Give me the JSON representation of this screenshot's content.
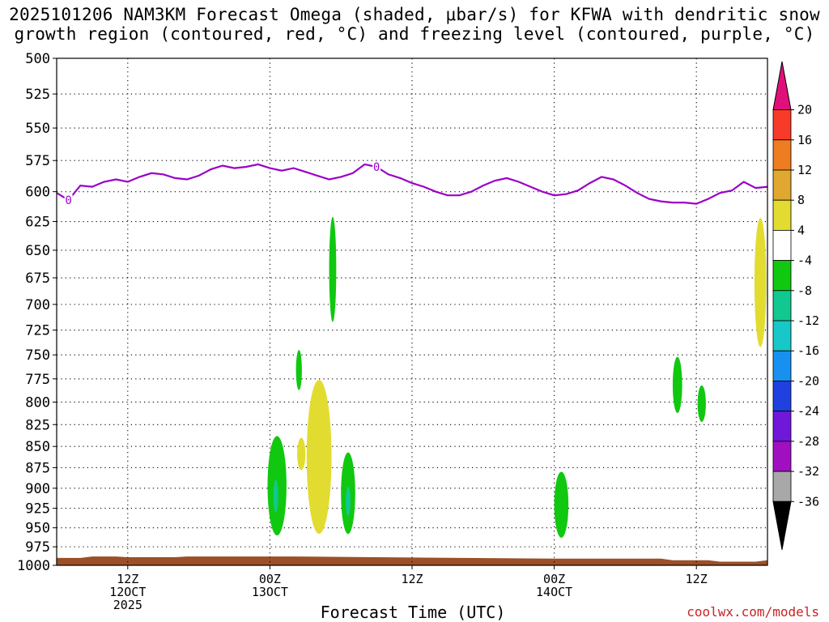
{
  "title": {
    "line1": "2025101206 NAM3KM Forecast Omega (shaded, μbar/s) for KFWA with dendritic snow",
    "line2": "growth region (contoured, red, °C) and freezing level (contoured, purple, °C)"
  },
  "credit": "coolwx.com/models",
  "chart_data": {
    "type": "time-height",
    "title": "2025101206 NAM3KM Forecast Omega (shaded, μbar/s) for KFWA with dendritic snow growth region (contoured, red, °C) and freezing level (contoured, purple, °C)",
    "xlabel": "Forecast Time (UTC)",
    "ylabel": "",
    "x_unit": "hours from 2025-10-12 06Z",
    "xlim": [
      0,
      60
    ],
    "y_unit": "hPa",
    "ylim": [
      1000,
      500
    ],
    "y_scale": "log-pressure, inverted",
    "y_ticks": [
      500,
      525,
      550,
      575,
      600,
      625,
      650,
      675,
      700,
      725,
      750,
      775,
      800,
      825,
      850,
      875,
      900,
      925,
      950,
      975,
      1000
    ],
    "x_ticks": [
      {
        "x": 6,
        "lines": [
          "12Z",
          "12OCT",
          "2025"
        ]
      },
      {
        "x": 18,
        "lines": [
          "00Z",
          "13OCT"
        ]
      },
      {
        "x": 30,
        "lines": [
          "12Z"
        ]
      },
      {
        "x": 42,
        "lines": [
          "00Z",
          "14OCT"
        ]
      },
      {
        "x": 54,
        "lines": [
          "12Z"
        ]
      }
    ],
    "grid": true,
    "colorbar": {
      "unit": "μbar/s",
      "tick_labels": [
        "20",
        "16",
        "12",
        "8",
        "4",
        "-4",
        "-8",
        "-12",
        "-16",
        "-20",
        "-24",
        "-28",
        "-32",
        "-36"
      ],
      "bins": [
        {
          "range": [
            20,
            null
          ],
          "color": "#e0107a"
        },
        {
          "range": [
            16,
            20
          ],
          "color": "#f83a28"
        },
        {
          "range": [
            12,
            16
          ],
          "color": "#ee7c20"
        },
        {
          "range": [
            8,
            12
          ],
          "color": "#e0a830"
        },
        {
          "range": [
            4,
            8
          ],
          "color": "#e2dc30"
        },
        {
          "range": [
            -4,
            4
          ],
          "color": "#ffffff"
        },
        {
          "range": [
            -8,
            -4
          ],
          "color": "#10c810"
        },
        {
          "range": [
            -12,
            -8
          ],
          "color": "#10c890"
        },
        {
          "range": [
            -16,
            -12
          ],
          "color": "#18c8c8"
        },
        {
          "range": [
            -20,
            -16
          ],
          "color": "#1890f0"
        },
        {
          "range": [
            -24,
            -20
          ],
          "color": "#2040e0"
        },
        {
          "range": [
            -28,
            -24
          ],
          "color": "#7018d8"
        },
        {
          "range": [
            -32,
            -28
          ],
          "color": "#a010c0"
        },
        {
          "range": [
            -36,
            -32
          ],
          "color": "#a8a8a8"
        },
        {
          "range": [
            null,
            -36
          ],
          "color": "#000000"
        }
      ]
    },
    "freezing_level": {
      "label": "0",
      "color": "#9b00c8",
      "points": [
        [
          0,
          601
        ],
        [
          1,
          607
        ],
        [
          2,
          595
        ],
        [
          3,
          596
        ],
        [
          4,
          592
        ],
        [
          5,
          590
        ],
        [
          6,
          592
        ],
        [
          7,
          588
        ],
        [
          8,
          585
        ],
        [
          9,
          586
        ],
        [
          10,
          589
        ],
        [
          11,
          590
        ],
        [
          12,
          587
        ],
        [
          13,
          582
        ],
        [
          14,
          579
        ],
        [
          15,
          581
        ],
        [
          16,
          580
        ],
        [
          17,
          578
        ],
        [
          18,
          581
        ],
        [
          19,
          583
        ],
        [
          20,
          581
        ],
        [
          21,
          584
        ],
        [
          22,
          587
        ],
        [
          23,
          590
        ],
        [
          24,
          588
        ],
        [
          25,
          585
        ],
        [
          26,
          578
        ],
        [
          27,
          580
        ],
        [
          28,
          586
        ],
        [
          29,
          589
        ],
        [
          30,
          593
        ],
        [
          31,
          596
        ],
        [
          32,
          600
        ],
        [
          33,
          603
        ],
        [
          34,
          603
        ],
        [
          35,
          600
        ],
        [
          36,
          595
        ],
        [
          37,
          591
        ],
        [
          38,
          589
        ],
        [
          39,
          592
        ],
        [
          40,
          596
        ],
        [
          41,
          600
        ],
        [
          42,
          603
        ],
        [
          43,
          602
        ],
        [
          44,
          599
        ],
        [
          45,
          593
        ],
        [
          46,
          588
        ],
        [
          47,
          590
        ],
        [
          48,
          595
        ],
        [
          49,
          601
        ],
        [
          50,
          606
        ],
        [
          51,
          608
        ],
        [
          52,
          609
        ],
        [
          53,
          609
        ],
        [
          54,
          610
        ],
        [
          55,
          606
        ],
        [
          56,
          601
        ],
        [
          57,
          599
        ],
        [
          58,
          592
        ],
        [
          59,
          597
        ],
        [
          60,
          596
        ]
      ]
    },
    "omega_regions": [
      {
        "value_bin": [
          -8,
          -4
        ],
        "color": "#10c810",
        "x_range": [
          23.0,
          23.6
        ],
        "p_range": [
          621,
          717
        ]
      },
      {
        "value_bin": [
          -8,
          -4
        ],
        "color": "#10c810",
        "x_range": [
          20.2,
          20.7
        ],
        "p_range": [
          745,
          787
        ]
      },
      {
        "value_bin": [
          -8,
          -4
        ],
        "color": "#10c810",
        "x_range": [
          17.8,
          19.4
        ],
        "p_range": [
          838,
          960
        ]
      },
      {
        "value_bin": [
          -12,
          -8
        ],
        "color": "#10c890",
        "x_range": [
          18.3,
          18.7
        ],
        "p_range": [
          890,
          930
        ]
      },
      {
        "value_bin": [
          4,
          8
        ],
        "color": "#e2dc30",
        "x_range": [
          20.3,
          21.0
        ],
        "p_range": [
          840,
          878
        ]
      },
      {
        "value_bin": [
          4,
          8
        ],
        "color": "#e2dc30",
        "x_range": [
          21.1,
          23.2
        ],
        "p_range": [
          776,
          958
        ]
      },
      {
        "value_bin": [
          -8,
          -4
        ],
        "color": "#10c810",
        "x_range": [
          24.0,
          25.2
        ],
        "p_range": [
          857,
          958
        ]
      },
      {
        "value_bin": [
          -12,
          -8
        ],
        "color": "#10c890",
        "x_range": [
          24.4,
          24.8
        ],
        "p_range": [
          898,
          935
        ]
      },
      {
        "value_bin": [
          -8,
          -4
        ],
        "color": "#10c810",
        "x_range": [
          42.0,
          43.2
        ],
        "p_range": [
          880,
          963
        ]
      },
      {
        "value_bin": [
          -8,
          -4
        ],
        "color": "#10c810",
        "x_range": [
          52.0,
          52.8
        ],
        "p_range": [
          752,
          812
        ]
      },
      {
        "value_bin": [
          -8,
          -4
        ],
        "color": "#10c810",
        "x_range": [
          54.1,
          54.8
        ],
        "p_range": [
          782,
          822
        ]
      },
      {
        "value_bin": [
          4,
          8
        ],
        "color": "#e2dc30",
        "x_range": [
          58.9,
          59.9
        ],
        "p_range": [
          622,
          742
        ]
      }
    ],
    "terrain": {
      "color": "#9b5028",
      "surface": [
        [
          0,
          990
        ],
        [
          2,
          990
        ],
        [
          3,
          988
        ],
        [
          5,
          988
        ],
        [
          6,
          989
        ],
        [
          10,
          989
        ],
        [
          11,
          988
        ],
        [
          20,
          988
        ],
        [
          27,
          989
        ],
        [
          42,
          991
        ],
        [
          46,
          991
        ],
        [
          51,
          991
        ],
        [
          52,
          993
        ],
        [
          55,
          993
        ],
        [
          56,
          995
        ],
        [
          59,
          995
        ],
        [
          60,
          993
        ]
      ]
    }
  }
}
